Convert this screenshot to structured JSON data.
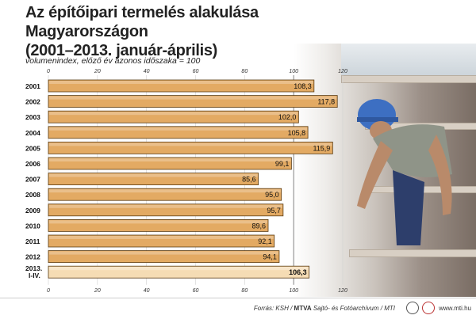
{
  "title_line1": "Az építőipari termelés alakulása Magyarországon",
  "title_line2": "(2001–2013. január-április)",
  "subtitle": "volumenindex, előző év azonos időszaka = 100",
  "footer": {
    "source_prefix": "Forrás: KSH / ",
    "source_bold": "MTVA",
    "source_suffix": " Sajtó- és Fotóarchívum / MTI",
    "site": "www.mti.hu"
  },
  "colors": {
    "bar": "#e3aa63",
    "bar_highlight": "#f5dcb4",
    "bar_border": "#5a3b12"
  },
  "chart_data": {
    "type": "bar",
    "orientation": "horizontal",
    "categories": [
      "2001",
      "2002",
      "2003",
      "2004",
      "2005",
      "2006",
      "2007",
      "2008",
      "2009",
      "2010",
      "2011",
      "2012",
      "2013. I-IV."
    ],
    "values": [
      108.3,
      117.8,
      102.0,
      105.8,
      115.9,
      99.1,
      85.6,
      95.0,
      95.7,
      89.6,
      92.1,
      94.1,
      106.3
    ],
    "value_labels": [
      "108,3",
      "117,8",
      "102,0",
      "105,8",
      "115,9",
      "99,1",
      "85,6",
      "95,0",
      "95,7",
      "89,6",
      "92,1",
      "94,1",
      "106,3"
    ],
    "highlight_index": 12,
    "xlim": [
      0,
      120
    ],
    "xticks": [
      "0",
      "20",
      "40",
      "60",
      "80",
      "100",
      "120"
    ],
    "reference_line": 100,
    "grid": true
  }
}
